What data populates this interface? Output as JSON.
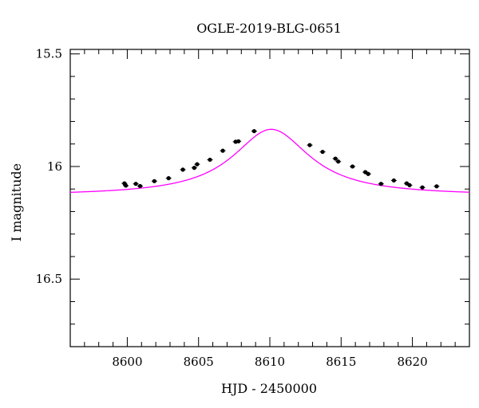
{
  "chart_data": {
    "type": "scatter",
    "title": "OGLE-2019-BLG-0651",
    "xlabel": "HJD - 2450000",
    "ylabel": "I magnitude",
    "xlim": [
      8596,
      8624
    ],
    "ylim": [
      16.8,
      15.48
    ],
    "y_inverted": true,
    "grid": false,
    "x_ticks": [
      {
        "value": 8600,
        "label": "8600"
      },
      {
        "value": 8605,
        "label": "8605"
      },
      {
        "value": 8610,
        "label": "8610"
      },
      {
        "value": 8615,
        "label": "8615"
      },
      {
        "value": 8620,
        "label": "8620"
      }
    ],
    "y_ticks": [
      {
        "value": 15.5,
        "label": "15.5"
      },
      {
        "value": 16.0,
        "label": "16"
      },
      {
        "value": 16.5,
        "label": "16.5"
      }
    ],
    "series": [
      {
        "kind": "points",
        "color": "#000000",
        "x": [
          8599.8,
          8599.9,
          8600.6,
          8600.9,
          8601.9,
          8602.9,
          8603.9,
          8604.7,
          8604.9,
          8605.8,
          8606.7,
          8607.6,
          8607.8,
          8608.9,
          8612.8,
          8613.7,
          8614.6,
          8614.8,
          8615.8,
          8616.7,
          8616.9,
          8617.8,
          8618.7,
          8619.6,
          8619.8,
          8620.7,
          8621.7
        ],
        "y": [
          16.075,
          16.085,
          16.077,
          16.087,
          16.065,
          16.052,
          16.014,
          16.006,
          15.99,
          15.97,
          15.93,
          15.89,
          15.888,
          15.843,
          15.905,
          15.935,
          15.965,
          15.978,
          16.0,
          16.025,
          16.033,
          16.077,
          16.062,
          16.075,
          16.083,
          16.093,
          16.088
        ]
      },
      {
        "kind": "model-curve",
        "color": "#ff00ff",
        "t0": 8610.1,
        "baseline_mag": 16.13,
        "peak_mag": 15.835,
        "width_days": 3.3
      }
    ]
  }
}
